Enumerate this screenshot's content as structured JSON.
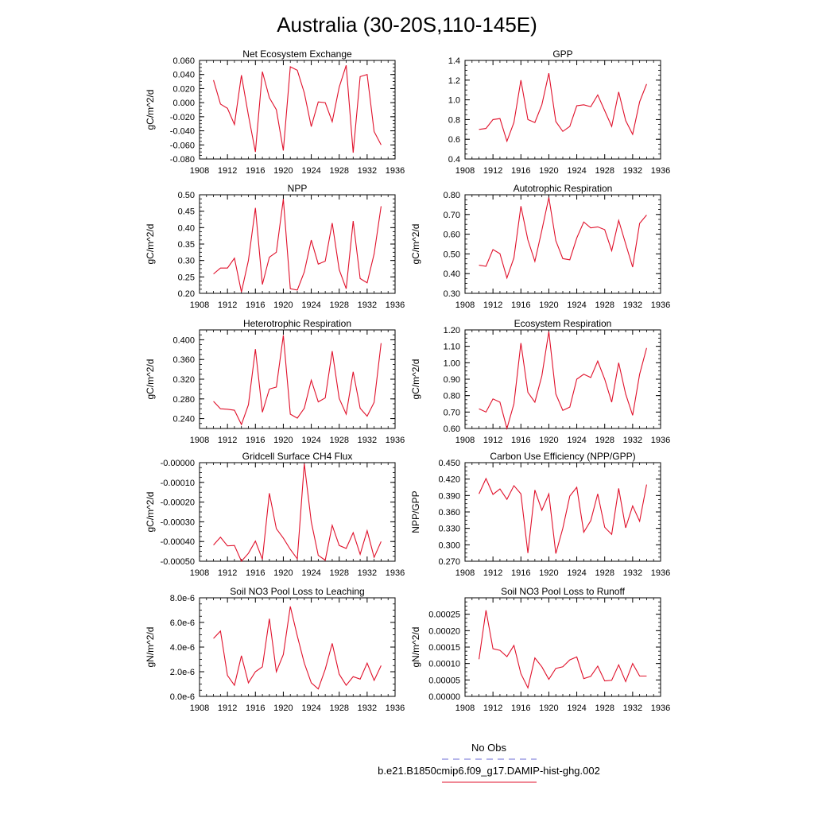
{
  "figure_title": "Australia (30-20S,110-145E)",
  "legend": {
    "entries": [
      {
        "label": "No Obs",
        "color": "#6b6bd6",
        "dashed": true
      },
      {
        "label": "b.e21.B1850cmip6.f09_g17.DAMIP-hist-ghg.002",
        "color": "#e0112b",
        "dashed": false
      }
    ]
  },
  "colors": {
    "series": "#e0112b",
    "axis": "#000000"
  },
  "chart_data": [
    {
      "type": "line",
      "title": "Net Ecosystem Exchange",
      "ylabel": "gC/m^2/d",
      "xlim": [
        1908,
        1936
      ],
      "xticks": [
        1908,
        1912,
        1916,
        1920,
        1924,
        1928,
        1932,
        1936
      ],
      "ylim": [
        -0.08,
        0.06
      ],
      "yticks": [
        -0.08,
        -0.06,
        -0.04,
        -0.02,
        0.0,
        0.02,
        0.04,
        0.06
      ],
      "ytick_labels": [
        "-0.080",
        "-0.060",
        "-0.040",
        "-0.020",
        "0.000",
        "0.020",
        "0.040",
        "0.060"
      ],
      "x": [
        1910,
        1911,
        1912,
        1913,
        1914,
        1915,
        1916,
        1917,
        1918,
        1919,
        1920,
        1921,
        1922,
        1923,
        1924,
        1925,
        1926,
        1927,
        1928,
        1929,
        1930,
        1931,
        1932,
        1933,
        1934
      ],
      "series": [
        {
          "values": [
            0.032,
            -0.002,
            -0.008,
            -0.031,
            0.039,
            -0.018,
            -0.07,
            0.044,
            0.007,
            -0.01,
            -0.068,
            0.051,
            0.046,
            0.014,
            -0.034,
            0.001,
            0.0,
            -0.027,
            0.022,
            0.053,
            -0.071,
            0.037,
            0.04,
            -0.041,
            -0.06
          ]
        }
      ]
    },
    {
      "type": "line",
      "title": "GPP",
      "ylabel": "",
      "xlim": [
        1908,
        1936
      ],
      "xticks": [
        1908,
        1912,
        1916,
        1920,
        1924,
        1928,
        1932,
        1936
      ],
      "ylim": [
        0.4,
        1.4
      ],
      "yticks": [
        0.4,
        0.6,
        0.8,
        1.0,
        1.2,
        1.4
      ],
      "ytick_labels": [
        "0.4",
        "0.6",
        "0.8",
        "1.0",
        "1.2",
        "1.4"
      ],
      "x": [
        1910,
        1911,
        1912,
        1913,
        1914,
        1915,
        1916,
        1917,
        1918,
        1919,
        1920,
        1921,
        1922,
        1923,
        1924,
        1925,
        1926,
        1927,
        1928,
        1929,
        1930,
        1931,
        1932,
        1933,
        1934
      ],
      "series": [
        {
          "values": [
            0.7,
            0.71,
            0.8,
            0.81,
            0.58,
            0.77,
            1.2,
            0.8,
            0.77,
            0.95,
            1.27,
            0.78,
            0.68,
            0.73,
            0.94,
            0.95,
            0.93,
            1.05,
            0.89,
            0.73,
            1.08,
            0.79,
            0.65,
            0.98,
            1.16
          ]
        }
      ]
    },
    {
      "type": "line",
      "title": "NPP",
      "ylabel": "gC/m^2/d",
      "xlim": [
        1908,
        1936
      ],
      "xticks": [
        1908,
        1912,
        1916,
        1920,
        1924,
        1928,
        1932,
        1936
      ],
      "ylim": [
        0.2,
        0.5
      ],
      "yticks": [
        0.2,
        0.25,
        0.3,
        0.35,
        0.4,
        0.45,
        0.5
      ],
      "ytick_labels": [
        "0.20",
        "0.25",
        "0.30",
        "0.35",
        "0.40",
        "0.45",
        "0.50"
      ],
      "x": [
        1910,
        1911,
        1912,
        1913,
        1914,
        1915,
        1916,
        1917,
        1918,
        1919,
        1920,
        1921,
        1922,
        1923,
        1924,
        1925,
        1926,
        1927,
        1928,
        1929,
        1930,
        1931,
        1932,
        1933,
        1934
      ],
      "series": [
        {
          "values": [
            0.259,
            0.277,
            0.277,
            0.307,
            0.204,
            0.3,
            0.46,
            0.227,
            0.31,
            0.325,
            0.487,
            0.214,
            0.21,
            0.265,
            0.362,
            0.289,
            0.298,
            0.414,
            0.272,
            0.214,
            0.42,
            0.245,
            0.232,
            0.32,
            0.465
          ]
        }
      ]
    },
    {
      "type": "line",
      "title": "Autotrophic Respiration",
      "ylabel": "gC/m^2/d",
      "xlim": [
        1908,
        1936
      ],
      "xticks": [
        1908,
        1912,
        1916,
        1920,
        1924,
        1928,
        1932,
        1936
      ],
      "ylim": [
        0.3,
        0.8
      ],
      "yticks": [
        0.3,
        0.4,
        0.5,
        0.6,
        0.7,
        0.8
      ],
      "ytick_labels": [
        "0.30",
        "0.40",
        "0.50",
        "0.60",
        "0.70",
        "0.80"
      ],
      "x": [
        1910,
        1911,
        1912,
        1913,
        1914,
        1915,
        1916,
        1917,
        1918,
        1919,
        1920,
        1921,
        1922,
        1923,
        1924,
        1925,
        1926,
        1927,
        1928,
        1929,
        1930,
        1931,
        1932,
        1933,
        1934
      ],
      "series": [
        {
          "values": [
            0.443,
            0.437,
            0.522,
            0.501,
            0.378,
            0.48,
            0.742,
            0.571,
            0.462,
            0.62,
            0.786,
            0.567,
            0.476,
            0.47,
            0.581,
            0.662,
            0.632,
            0.637,
            0.623,
            0.516,
            0.67,
            0.551,
            0.433,
            0.655,
            0.697
          ]
        }
      ]
    },
    {
      "type": "line",
      "title": "Heterotrophic Respiration",
      "ylabel": "gC/m^2/d",
      "xlim": [
        1908,
        1936
      ],
      "xticks": [
        1908,
        1912,
        1916,
        1920,
        1924,
        1928,
        1932,
        1936
      ],
      "ylim": [
        0.22,
        0.42
      ],
      "yticks": [
        0.24,
        0.28,
        0.32,
        0.36,
        0.4
      ],
      "ytick_labels": [
        "0.240",
        "0.280",
        "0.320",
        "0.360",
        "0.400"
      ],
      "x": [
        1910,
        1911,
        1912,
        1913,
        1914,
        1915,
        1916,
        1917,
        1918,
        1919,
        1920,
        1921,
        1922,
        1923,
        1924,
        1925,
        1926,
        1927,
        1928,
        1929,
        1930,
        1931,
        1932,
        1933,
        1934
      ],
      "series": [
        {
          "values": [
            0.275,
            0.26,
            0.259,
            0.257,
            0.228,
            0.268,
            0.381,
            0.253,
            0.3,
            0.304,
            0.409,
            0.249,
            0.241,
            0.261,
            0.318,
            0.274,
            0.282,
            0.377,
            0.281,
            0.249,
            0.335,
            0.261,
            0.245,
            0.273,
            0.393
          ]
        }
      ]
    },
    {
      "type": "line",
      "title": "Ecosystem Respiration",
      "ylabel": "gC/m^2/d",
      "xlim": [
        1908,
        1936
      ],
      "xticks": [
        1908,
        1912,
        1916,
        1920,
        1924,
        1928,
        1932,
        1936
      ],
      "ylim": [
        0.6,
        1.2
      ],
      "yticks": [
        0.6,
        0.7,
        0.8,
        0.9,
        1.0,
        1.1,
        1.2
      ],
      "ytick_labels": [
        "0.60",
        "0.70",
        "0.80",
        "0.90",
        "1.00",
        "1.10",
        "1.20"
      ],
      "x": [
        1910,
        1911,
        1912,
        1913,
        1914,
        1915,
        1916,
        1917,
        1918,
        1919,
        1920,
        1921,
        1922,
        1923,
        1924,
        1925,
        1926,
        1927,
        1928,
        1929,
        1930,
        1931,
        1932,
        1933,
        1934
      ],
      "series": [
        {
          "values": [
            0.72,
            0.7,
            0.78,
            0.76,
            0.6,
            0.75,
            1.12,
            0.82,
            0.76,
            0.92,
            1.19,
            0.81,
            0.71,
            0.73,
            0.9,
            0.93,
            0.91,
            1.01,
            0.9,
            0.76,
            1.0,
            0.81,
            0.68,
            0.93,
            1.09
          ]
        }
      ]
    },
    {
      "type": "line",
      "title": "Gridcell Surface CH4 Flux",
      "ylabel": "gC/m^2/d",
      "xlim": [
        1908,
        1936
      ],
      "xticks": [
        1908,
        1912,
        1916,
        1920,
        1924,
        1928,
        1932,
        1936
      ],
      "ylim": [
        -0.0005,
        0.0
      ],
      "yticks": [
        -0.0005,
        -0.0004,
        -0.0003,
        -0.0002,
        -0.0001,
        0.0
      ],
      "ytick_labels": [
        "-0.00050",
        "-0.00040",
        "-0.00030",
        "-0.00020",
        "-0.00010",
        "-0.00000"
      ],
      "x": [
        1910,
        1911,
        1912,
        1913,
        1914,
        1915,
        1916,
        1917,
        1918,
        1919,
        1920,
        1921,
        1922,
        1923,
        1924,
        1925,
        1926,
        1927,
        1928,
        1929,
        1930,
        1931,
        1932,
        1933,
        1934
      ],
      "series": [
        {
          "values": [
            -0.000418,
            -0.000378,
            -0.000422,
            -0.00042,
            -0.0005,
            -0.00046,
            -0.000398,
            -0.00049,
            -0.000155,
            -0.000335,
            -0.000383,
            -0.00044,
            -0.000488,
            -5e-06,
            -0.0003,
            -0.00047,
            -0.000495,
            -0.000318,
            -0.00042,
            -0.000435,
            -0.000355,
            -0.000465,
            -0.000345,
            -0.00048,
            -0.0004
          ]
        }
      ]
    },
    {
      "type": "line",
      "title": "Carbon Use Efficiency (NPP/GPP)",
      "ylabel": "NPP/GPP",
      "xlim": [
        1908,
        1936
      ],
      "xticks": [
        1908,
        1912,
        1916,
        1920,
        1924,
        1928,
        1932,
        1936
      ],
      "ylim": [
        0.27,
        0.45
      ],
      "yticks": [
        0.27,
        0.3,
        0.33,
        0.36,
        0.39,
        0.42,
        0.45
      ],
      "ytick_labels": [
        "0.270",
        "0.300",
        "0.330",
        "0.360",
        "0.390",
        "0.420",
        "0.450"
      ],
      "x": [
        1910,
        1911,
        1912,
        1913,
        1914,
        1915,
        1916,
        1917,
        1918,
        1919,
        1920,
        1921,
        1922,
        1923,
        1924,
        1925,
        1926,
        1927,
        1928,
        1929,
        1930,
        1931,
        1932,
        1933,
        1934
      ],
      "series": [
        {
          "values": [
            0.393,
            0.421,
            0.392,
            0.402,
            0.383,
            0.408,
            0.393,
            0.285,
            0.4,
            0.363,
            0.393,
            0.284,
            0.33,
            0.389,
            0.405,
            0.323,
            0.344,
            0.393,
            0.332,
            0.319,
            0.403,
            0.331,
            0.371,
            0.343,
            0.41
          ]
        }
      ]
    },
    {
      "type": "line",
      "title": "Soil NO3 Pool Loss to Leaching",
      "ylabel": "gN/m^2/d",
      "xlim": [
        1908,
        1936
      ],
      "xticks": [
        1908,
        1912,
        1916,
        1920,
        1924,
        1928,
        1932,
        1936
      ],
      "ylim": [
        0.0,
        8e-06
      ],
      "yticks": [
        0.0,
        2e-06,
        4e-06,
        6e-06,
        8e-06
      ],
      "ytick_labels": [
        "0.0e-6",
        "2.0e-6",
        "4.0e-6",
        "6.0e-6",
        "8.0e-6"
      ],
      "x": [
        1910,
        1911,
        1912,
        1913,
        1914,
        1915,
        1916,
        1917,
        1918,
        1919,
        1920,
        1921,
        1922,
        1923,
        1924,
        1925,
        1926,
        1927,
        1928,
        1929,
        1930,
        1931,
        1932,
        1933,
        1934
      ],
      "series": [
        {
          "values": [
            4.7e-06,
            5.3e-06,
            1.7e-06,
            9e-07,
            3.3e-06,
            1.1e-06,
            2e-06,
            2.4e-06,
            6.3e-06,
            2e-06,
            3.4e-06,
            7.3e-06,
            4.9e-06,
            2.7e-06,
            1.1e-06,
            6e-07,
            2.2e-06,
            4.3e-06,
            1.8e-06,
            9e-07,
            1.6e-06,
            1.4e-06,
            2.7e-06,
            1.3e-06,
            2.5e-06
          ]
        }
      ]
    },
    {
      "type": "line",
      "title": "Soil NO3 Pool Loss to Runoff",
      "ylabel": "gN/m^2/d",
      "xlim": [
        1908,
        1936
      ],
      "xticks": [
        1908,
        1912,
        1916,
        1920,
        1924,
        1928,
        1932,
        1936
      ],
      "ylim": [
        0.0,
        0.0003
      ],
      "yticks": [
        0.0,
        5e-05,
        0.0001,
        0.00015,
        0.0002,
        0.00025
      ],
      "ytick_labels": [
        "0.00000",
        "0.00005",
        "0.00010",
        "0.00015",
        "0.00020",
        "0.00025"
      ],
      "x": [
        1910,
        1911,
        1912,
        1913,
        1914,
        1915,
        1916,
        1917,
        1918,
        1919,
        1920,
        1921,
        1922,
        1923,
        1924,
        1925,
        1926,
        1927,
        1928,
        1929,
        1930,
        1931,
        1932,
        1933,
        1934
      ],
      "series": [
        {
          "values": [
            0.000113,
            0.000262,
            0.000145,
            0.00014,
            0.000121,
            0.000155,
            6.9e-05,
            2.6e-05,
            0.000117,
            9e-05,
            5.2e-05,
            8.5e-05,
            9e-05,
            0.000111,
            0.00012,
            5.4e-05,
            6.1e-05,
            9.2e-05,
            4.7e-05,
            4.9e-05,
            9.6e-05,
            4.5e-05,
            0.0001,
            6.2e-05,
            6.2e-05
          ]
        }
      ]
    }
  ]
}
